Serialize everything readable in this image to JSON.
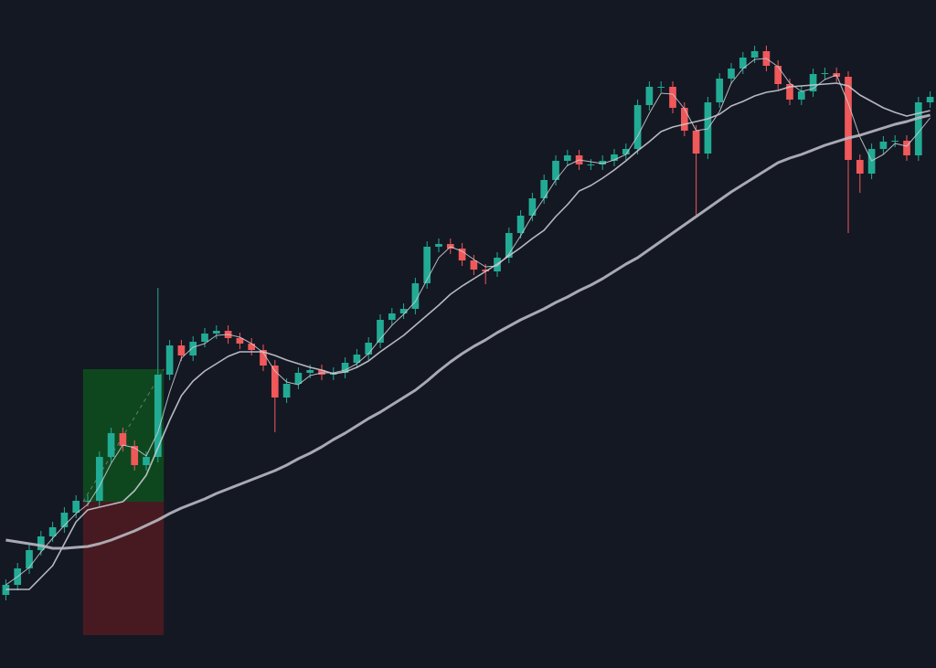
{
  "chart_data": {
    "type": "candlestick",
    "xlim": [
      -0.5,
      79.5
    ],
    "ylim": [
      0,
      731
    ],
    "up_color": "#22ab94",
    "down_color": "#f0585a",
    "x": [
      0,
      1,
      2,
      3,
      4,
      5,
      6,
      7,
      8,
      9,
      10,
      11,
      12,
      13,
      14,
      15,
      16,
      17,
      18,
      19,
      20,
      21,
      22,
      23,
      24,
      25,
      26,
      27,
      28,
      29,
      30,
      31,
      32,
      33,
      34,
      35,
      36,
      37,
      38,
      39,
      40,
      41,
      42,
      43,
      44,
      45,
      46,
      47,
      48,
      49,
      50,
      51,
      52,
      53,
      54,
      55,
      56,
      57,
      58,
      59,
      60,
      61,
      62,
      63,
      64,
      65,
      66,
      67,
      68,
      69,
      70,
      71,
      72,
      73,
      74,
      75,
      76,
      77,
      78,
      79
    ],
    "open": [
      80,
      91,
      109,
      129,
      144,
      154,
      170,
      183,
      183,
      231,
      257,
      243,
      222,
      231,
      321,
      353,
      342,
      357,
      366,
      369,
      361,
      355,
      348,
      331,
      296,
      311,
      323,
      326,
      321,
      323,
      334,
      343,
      356,
      381,
      388,
      393,
      421,
      461,
      464,
      459,
      446,
      436,
      434,
      449,
      476,
      495,
      514,
      534,
      555,
      561,
      551,
      551,
      555,
      562,
      568,
      616,
      636,
      636,
      613,
      588,
      563,
      619,
      645,
      656,
      668,
      675,
      659,
      639,
      622,
      631,
      650,
      651,
      647,
      556,
      541,
      568,
      576,
      577,
      561,
      619
    ],
    "high": [
      97,
      115,
      135,
      150,
      160,
      176,
      189,
      189,
      237,
      263,
      263,
      249,
      237,
      416,
      359,
      359,
      363,
      372,
      375,
      375,
      367,
      361,
      354,
      337,
      317,
      329,
      332,
      332,
      329,
      340,
      349,
      362,
      387,
      394,
      399,
      427,
      467,
      470,
      470,
      465,
      452,
      442,
      455,
      482,
      501,
      520,
      540,
      561,
      567,
      567,
      557,
      561,
      568,
      574,
      622,
      642,
      642,
      642,
      619,
      594,
      625,
      651,
      662,
      674,
      681,
      681,
      665,
      645,
      637,
      656,
      657,
      657,
      653,
      562,
      574,
      582,
      583,
      583,
      625,
      631
    ],
    "low": [
      74,
      85,
      103,
      123,
      138,
      148,
      164,
      177,
      177,
      225,
      237,
      216,
      216,
      225,
      315,
      336,
      336,
      351,
      360,
      355,
      349,
      342,
      325,
      258,
      290,
      305,
      317,
      315,
      315,
      317,
      328,
      337,
      350,
      375,
      382,
      387,
      415,
      455,
      453,
      440,
      430,
      420,
      428,
      443,
      470,
      489,
      508,
      528,
      549,
      545,
      545,
      545,
      549,
      556,
      562,
      610,
      630,
      607,
      582,
      496,
      557,
      613,
      639,
      650,
      662,
      653,
      633,
      616,
      616,
      625,
      644,
      641,
      476,
      520,
      535,
      562,
      570,
      555,
      555,
      613
    ],
    "close": [
      91,
      109,
      129,
      144,
      154,
      170,
      183,
      183,
      231,
      257,
      243,
      222,
      231,
      321,
      353,
      342,
      357,
      366,
      369,
      361,
      355,
      348,
      331,
      296,
      311,
      323,
      326,
      321,
      323,
      334,
      343,
      356,
      381,
      388,
      393,
      421,
      461,
      464,
      459,
      446,
      436,
      434,
      449,
      476,
      495,
      514,
      534,
      555,
      561,
      551,
      551,
      555,
      562,
      568,
      616,
      636,
      636,
      613,
      588,
      563,
      619,
      645,
      656,
      668,
      675,
      659,
      639,
      622,
      631,
      650,
      651,
      647,
      556,
      541,
      568,
      576,
      577,
      561,
      619,
      625
    ],
    "series": [
      {
        "color": "#c9cad0",
        "width": 1,
        "values": [
          91,
          100,
          110,
          127,
          142,
          156,
          169,
          179,
          199,
          224,
          244,
          241,
          232,
          258,
          302,
          339,
          351,
          355,
          364,
          365,
          362,
          355,
          345,
          325,
          313,
          310,
          320,
          323,
          323,
          326,
          333,
          344,
          360,
          375,
          387,
          401,
          425,
          449,
          461,
          456,
          447,
          439,
          440,
          453,
          473,
          495,
          514,
          534,
          550,
          556,
          554,
          552,
          556,
          562,
          582,
          607,
          629,
          628,
          612,
          588,
          590,
          609,
          640,
          656,
          666,
          667,
          658,
          640,
          631,
          634,
          644,
          649,
          618,
          581,
          555,
          562,
          574,
          571,
          586,
          602
        ]
      },
      {
        "color": "#c9cad0",
        "width": 1.6,
        "values": [
          86,
          86,
          86,
          99,
          112,
          136,
          160,
          173,
          176,
          179,
          182,
          194,
          211,
          241,
          271,
          298,
          314,
          325,
          333,
          341,
          346,
          346,
          346,
          342,
          337,
          333,
          329,
          326,
          322,
          324,
          329,
          336,
          346,
          355,
          364,
          375,
          386,
          397,
          409,
          418,
          426,
          434,
          442,
          451,
          460,
          470,
          479,
          494,
          507,
          522,
          528,
          536,
          545,
          555,
          566,
          576,
          587,
          592,
          595,
          598,
          601,
          606,
          615,
          620,
          626,
          630,
          632,
          636,
          637,
          638,
          639,
          640,
          637,
          627,
          620,
          613,
          608,
          604,
          607,
          610
        ]
      },
      {
        "color": "#b8b9c2",
        "width": 3,
        "values": [
          140,
          138,
          136,
          134,
          131,
          131,
          132,
          133,
          136,
          140,
          145,
          150,
          156,
          162,
          169,
          175,
          180,
          185,
          191,
          196,
          201,
          206,
          211,
          216,
          222,
          229,
          235,
          242,
          250,
          257,
          265,
          273,
          280,
          288,
          296,
          304,
          314,
          325,
          335,
          344,
          352,
          359,
          367,
          374,
          381,
          387,
          393,
          400,
          406,
          413,
          419,
          426,
          434,
          442,
          449,
          458,
          467,
          476,
          485,
          494,
          503,
          512,
          521,
          529,
          537,
          545,
          553,
          558,
          562,
          567,
          572,
          576,
          580,
          583,
          587,
          591,
          595,
          598,
          602,
          605
        ]
      }
    ],
    "position": {
      "x": [
        6.6,
        13.5
      ],
      "entry": 182,
      "target": 327,
      "stop": 36,
      "profit_color": "#0e4a1f",
      "loss_color": "#4a1a22"
    }
  }
}
